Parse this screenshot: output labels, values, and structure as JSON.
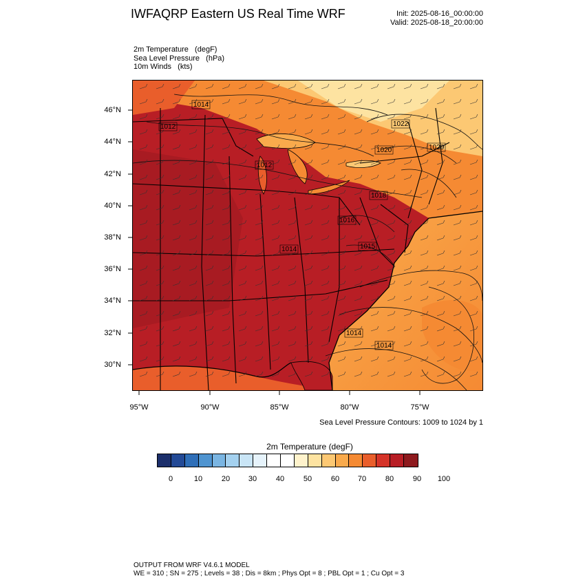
{
  "header": {
    "title": "IWFAQRP Eastern US Real Time WRF",
    "init": "Init: 2025-08-16_00:00:00",
    "valid": "Valid: 2025-08-18_20:00:00"
  },
  "variables": [
    "2m Temperature   (degF)",
    "Sea Level Pressure   (hPa)",
    "10m Winds   (kts)"
  ],
  "axes": {
    "lat_labels": [
      "46°N",
      "44°N",
      "42°N",
      "40°N",
      "38°N",
      "36°N",
      "34°N",
      "32°N",
      "30°N"
    ],
    "lon_labels": [
      "95°W",
      "90°W",
      "85°W",
      "80°W",
      "75°W"
    ]
  },
  "contour_note": "Sea Level Pressure Contours: 1009 to 1024 by 1",
  "slp_labels": [
    "1014",
    "1012",
    "1012",
    "1022",
    "1020",
    "1020",
    "1018",
    "1016",
    "1015",
    "1014",
    "1014",
    "1014"
  ],
  "colorbar": {
    "title": "2m Temperature  (degF)",
    "labels": [
      "0",
      "10",
      "20",
      "30",
      "40",
      "50",
      "60",
      "70",
      "80",
      "90",
      "100"
    ],
    "colors": [
      "#1c2f6b",
      "#234a96",
      "#2f6fb8",
      "#4f94d0",
      "#7ab5e2",
      "#a4d1ef",
      "#c9e5f6",
      "#e6f3fb",
      "#ffffff",
      "#ffffff",
      "#fff3cc",
      "#fde3a1",
      "#fcc873",
      "#f9aa4c",
      "#f58a33",
      "#e95e2b",
      "#d53328",
      "#b81e25",
      "#8e1a1e"
    ]
  },
  "footer": {
    "line1": "OUTPUT FROM WRF V4.6.1 MODEL",
    "line2": "WE = 310 ; SN = 275 ; Levels = 38 ; Dis = 8km ; Phys Opt = 8 ; PBL Opt = 1 ; Cu Opt = 3"
  }
}
